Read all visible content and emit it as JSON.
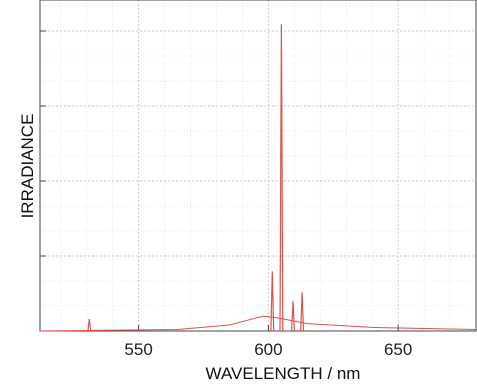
{
  "chart_data": {
    "type": "line",
    "title": "",
    "xlabel": "WAVELENGTH / nm",
    "ylabel": "IRRADIANCE",
    "xlim": [
      512,
      680
    ],
    "ylim": [
      0,
      1
    ],
    "x_ticks": [
      550,
      600,
      650
    ],
    "x_tick_labels": [
      "550",
      "600",
      "650"
    ],
    "y_tick_values": [
      0.25,
      0.5,
      0.75,
      1.0
    ],
    "grid": true,
    "legend": "none",
    "series": [
      {
        "line_color": "#d9534f",
        "baseline": [
          [
            512,
            0.0
          ],
          [
            565,
            0.005
          ],
          [
            585,
            0.02
          ],
          [
            598,
            0.05
          ],
          [
            603,
            0.045
          ],
          [
            615,
            0.025
          ],
          [
            640,
            0.012
          ],
          [
            680,
            0.005
          ]
        ],
        "peaks": [
          {
            "x": 531,
            "y": 0.04
          },
          {
            "x": 601.5,
            "y": 0.2
          },
          {
            "x": 605,
            "y": 1.03
          },
          {
            "x": 609.5,
            "y": 0.1
          },
          {
            "x": 613,
            "y": 0.13
          }
        ]
      }
    ]
  }
}
